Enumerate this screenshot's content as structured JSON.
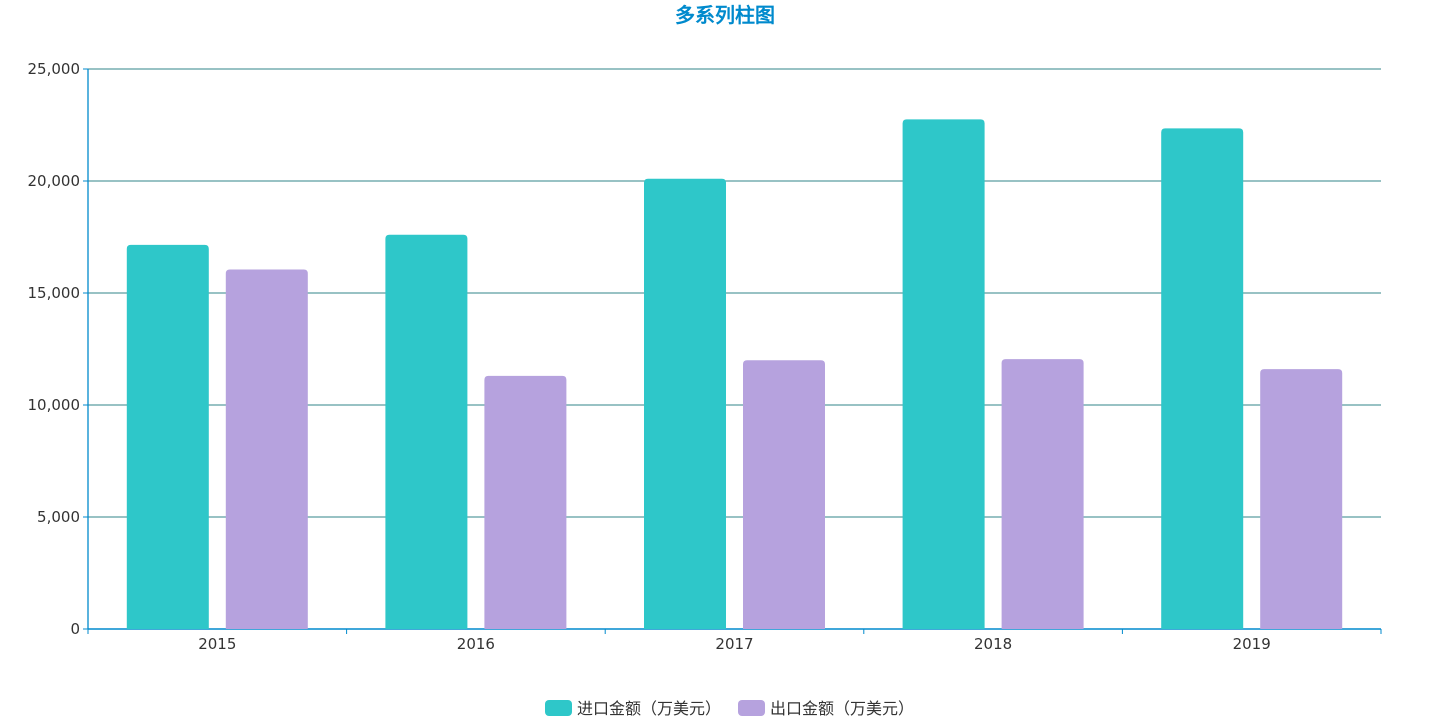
{
  "chart_data": {
    "type": "bar",
    "title": "多系列柱图",
    "xlabel": "",
    "ylabel": "",
    "categories": [
      "2015",
      "2016",
      "2017",
      "2018",
      "2019"
    ],
    "series": [
      {
        "name": "进口金额（万美元）",
        "color": "#2ec7c9",
        "values": [
          17150,
          17600,
          20100,
          22750,
          22350
        ]
      },
      {
        "name": "出口金额（万美元）",
        "color": "#b6a2de",
        "values": [
          16050,
          11300,
          12000,
          12050,
          11600
        ]
      }
    ],
    "ylim": [
      0,
      25000
    ],
    "yticks": [
      "0",
      "5,000",
      "10,000",
      "15,000",
      "20,000",
      "25,000"
    ],
    "ytick_values": [
      0,
      5000,
      10000,
      15000,
      20000,
      25000
    ],
    "grid": true,
    "legend_position": "bottom-center",
    "colors": {
      "title": "#008acd",
      "axis": "#008acd",
      "grid": "#5b9ea0",
      "text": "#333333"
    }
  }
}
